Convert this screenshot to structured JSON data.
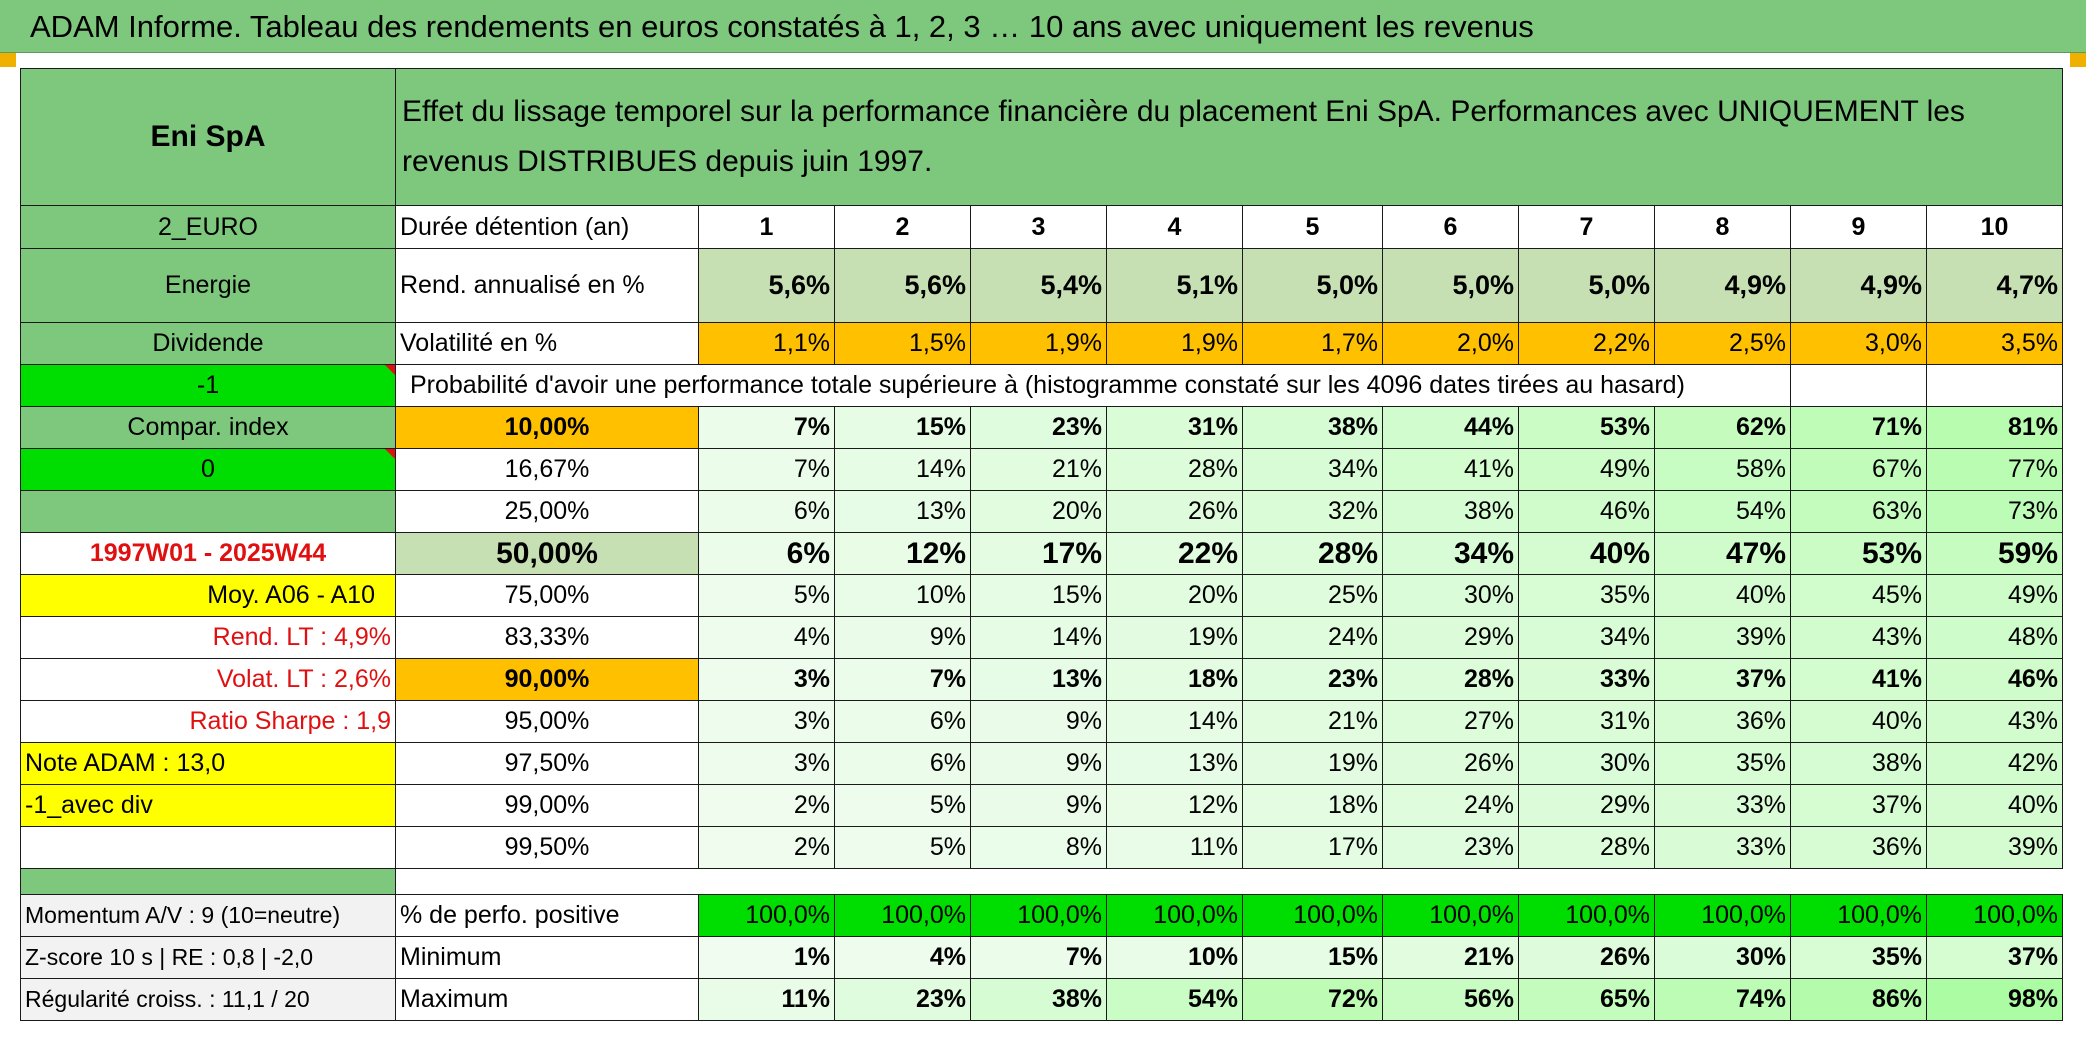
{
  "title": "ADAM Informe. Tableau des rendements en euros constatés à 1, 2, 3 … 10 ans avec uniquement les revenus",
  "header": {
    "asset_name": "Eni SpA",
    "description": "Effet du lissage temporel sur la performance financière du placement Eni SpA. Performances avec UNIQUEMENT les revenus DISTRIBUES depuis juin 1997."
  },
  "left_panel": {
    "currency": "2_EURO",
    "sector": "Energie",
    "type": "Dividende",
    "flag_value": "-1",
    "compar_label": "Compar. index",
    "compar_value": "0",
    "period": "1997W01 - 2025W44",
    "avg_label": "Moy. A06 - A10",
    "rend_lt": "Rend. LT :   4,9%",
    "volat_lt": "Volat. LT :   2,6%",
    "sharpe": "Ratio Sharpe :   1,9",
    "note": "Note ADAM : 13,0",
    "variant": "-1_avec div",
    "momentum": "Momentum A/V : 9 (10=neutre)",
    "zscore": "Z-score 10 s | RE : 0,8 | -2,0",
    "regularite": "Régularité croiss. : 11,1 / 20"
  },
  "labels": {
    "duration": "Durée détention (an)",
    "rend": "Rend. annualisé en %",
    "volat": "Volatilité en %",
    "probability": "Probabilité d'avoir une performance totale supérieure à (histogramme constaté sur les 4096 dates tirées au hasard)",
    "positive": "% de perfo. positive",
    "minimum": "Minimum",
    "maximum": "Maximum"
  },
  "years": [
    "1",
    "2",
    "3",
    "4",
    "5",
    "6",
    "7",
    "8",
    "9",
    "10"
  ],
  "rend_values": [
    "5,6%",
    "5,6%",
    "5,4%",
    "5,1%",
    "5,0%",
    "5,0%",
    "5,0%",
    "4,9%",
    "4,9%",
    "4,7%"
  ],
  "volat_values": [
    "1,1%",
    "1,5%",
    "1,9%",
    "1,9%",
    "1,7%",
    "2,0%",
    "2,2%",
    "2,5%",
    "3,0%",
    "3,5%"
  ],
  "probability_rows": [
    {
      "threshold": "10,00%",
      "values": [
        "7%",
        "15%",
        "23%",
        "31%",
        "38%",
        "44%",
        "53%",
        "62%",
        "71%",
        "81%"
      ]
    },
    {
      "threshold": "16,67%",
      "values": [
        "7%",
        "14%",
        "21%",
        "28%",
        "34%",
        "41%",
        "49%",
        "58%",
        "67%",
        "77%"
      ]
    },
    {
      "threshold": "25,00%",
      "values": [
        "6%",
        "13%",
        "20%",
        "26%",
        "32%",
        "38%",
        "46%",
        "54%",
        "63%",
        "73%"
      ]
    },
    {
      "threshold": "50,00%",
      "values": [
        "6%",
        "12%",
        "17%",
        "22%",
        "28%",
        "34%",
        "40%",
        "47%",
        "53%",
        "59%"
      ]
    },
    {
      "threshold": "75,00%",
      "values": [
        "5%",
        "10%",
        "15%",
        "20%",
        "25%",
        "30%",
        "35%",
        "40%",
        "45%",
        "49%"
      ]
    },
    {
      "threshold": "83,33%",
      "values": [
        "4%",
        "9%",
        "14%",
        "19%",
        "24%",
        "29%",
        "34%",
        "39%",
        "43%",
        "48%"
      ]
    },
    {
      "threshold": "90,00%",
      "values": [
        "3%",
        "7%",
        "13%",
        "18%",
        "23%",
        "28%",
        "33%",
        "37%",
        "41%",
        "46%"
      ]
    },
    {
      "threshold": "95,00%",
      "values": [
        "3%",
        "6%",
        "9%",
        "14%",
        "21%",
        "27%",
        "31%",
        "36%",
        "40%",
        "43%"
      ]
    },
    {
      "threshold": "97,50%",
      "values": [
        "3%",
        "6%",
        "9%",
        "13%",
        "19%",
        "26%",
        "30%",
        "35%",
        "38%",
        "42%"
      ]
    },
    {
      "threshold": "99,00%",
      "values": [
        "2%",
        "5%",
        "9%",
        "12%",
        "18%",
        "24%",
        "29%",
        "33%",
        "37%",
        "40%"
      ]
    },
    {
      "threshold": "99,50%",
      "values": [
        "2%",
        "5%",
        "8%",
        "11%",
        "17%",
        "23%",
        "28%",
        "33%",
        "36%",
        "39%"
      ]
    }
  ],
  "positive_values": [
    "100,0%",
    "100,0%",
    "100,0%",
    "100,0%",
    "100,0%",
    "100,0%",
    "100,0%",
    "100,0%",
    "100,0%",
    "100,0%"
  ],
  "min_values": [
    "1%",
    "4%",
    "7%",
    "10%",
    "15%",
    "21%",
    "26%",
    "30%",
    "35%",
    "37%"
  ],
  "max_values": [
    "11%",
    "23%",
    "38%",
    "54%",
    "72%",
    "56%",
    "65%",
    "74%",
    "86%",
    "98%"
  ],
  "colors": {
    "header_green": "#7dc87d",
    "light_green": "#c6e0b4",
    "orange": "#ffc000",
    "yellow": "#ffff00",
    "bright_green": "#00dd00",
    "red_text": "#e01010"
  }
}
